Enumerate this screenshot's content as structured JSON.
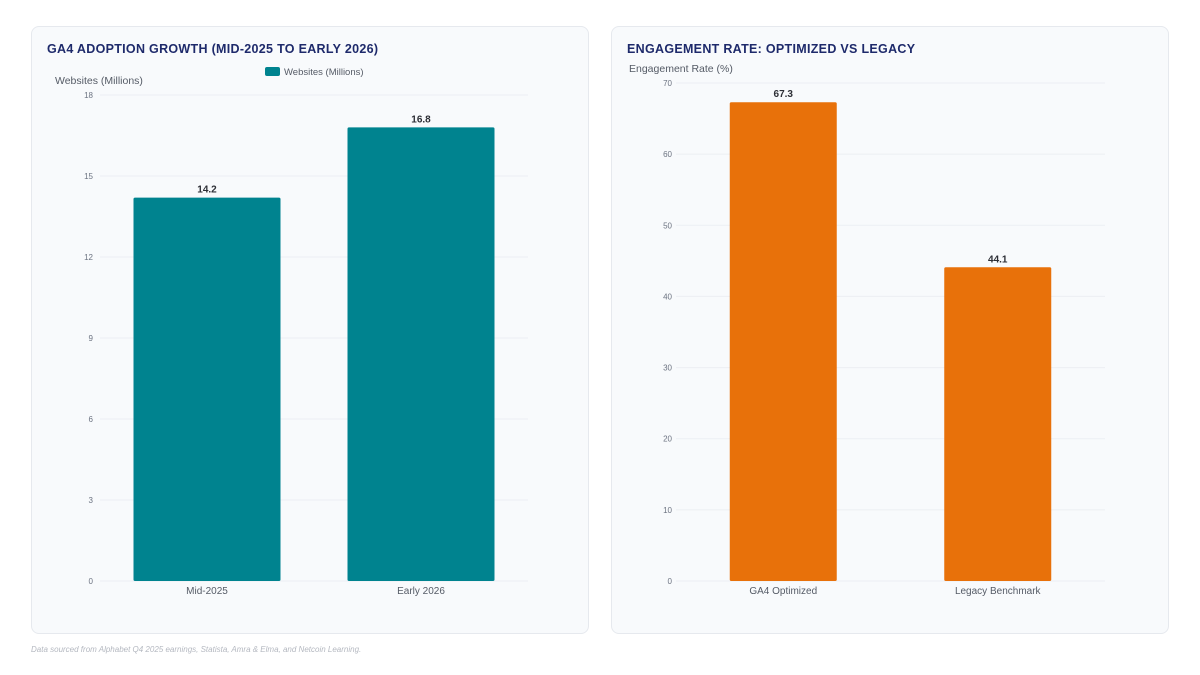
{
  "colors": {
    "teal": "#00838f",
    "orange": "#e8710a"
  },
  "footnote": "Data sourced from Alphabet Q4 2025 earnings, Statista, Amra & Elma, and Netcoin Learning.",
  "chart_data": [
    {
      "type": "bar",
      "title": "GA4 ADOPTION GROWTH (MID-2025 TO EARLY 2026)",
      "ylabel": "Websites (Millions)",
      "xlabel": "",
      "categories": [
        "Mid-2025",
        "Early 2026"
      ],
      "series": [
        {
          "name": "Websites (Millions)",
          "values": [
            14.2,
            16.8
          ]
        }
      ],
      "ylim": [
        0,
        18
      ],
      "yticks": [
        0,
        3,
        6,
        9,
        12,
        15,
        18
      ],
      "data_labels": [
        "14.2",
        "16.8"
      ],
      "legend": "top-center",
      "grid": true,
      "color": "#00838f"
    },
    {
      "type": "bar",
      "title": "ENGAGEMENT RATE: OPTIMIZED VS LEGACY",
      "ylabel": "Engagement Rate (%)",
      "xlabel": "",
      "categories": [
        "GA4 Optimized",
        "Legacy Benchmark"
      ],
      "values": [
        67.3,
        44.1
      ],
      "ylim": [
        0,
        70
      ],
      "yticks": [
        0,
        10,
        20,
        30,
        40,
        50,
        60,
        70
      ],
      "data_labels": [
        "67.3",
        "44.1"
      ],
      "legend": "none",
      "grid": true,
      "color": "#e8710a"
    }
  ]
}
